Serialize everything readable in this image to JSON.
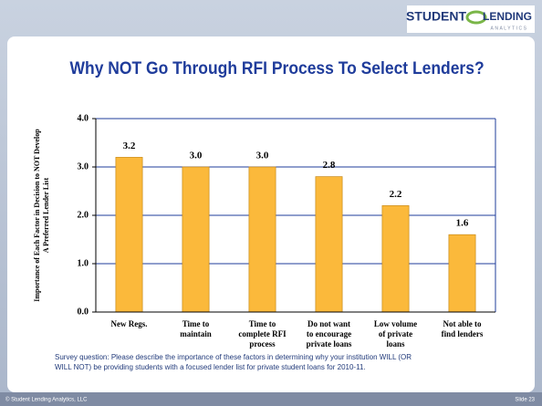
{
  "logo": {
    "left": "STUDENT",
    "right": "LENDING",
    "sub": "ANALYTICS"
  },
  "chart_data": {
    "type": "bar",
    "title": "Why NOT Go Through RFI Process To Select Lenders?",
    "y_label": [
      "Importance of Each Factor in Decision to NOT Develop",
      "A Preferred Lender List"
    ],
    "categories": [
      [
        "New Regs."
      ],
      [
        "Time to",
        "maintain"
      ],
      [
        "Time to",
        "complete RFI",
        "process"
      ],
      [
        "Do not want",
        "to encourage",
        "private loans"
      ],
      [
        "Low volume",
        "of private",
        "loans"
      ],
      [
        "Not able to",
        "find lenders"
      ]
    ],
    "values": [
      3.2,
      3.0,
      3.0,
      2.8,
      2.2,
      1.6
    ],
    "value_labels": [
      "3.2",
      "3.0",
      "3.0",
      "2.8",
      "2.2",
      "1.6"
    ],
    "color": "#fbb93b",
    "ylim": [
      0,
      4
    ],
    "yticks": [
      {
        "value": 0,
        "label": "0.0"
      },
      {
        "value": 1,
        "label": "1.0"
      },
      {
        "value": 2,
        "label": "2.0"
      },
      {
        "value": 3,
        "label": "3.0"
      },
      {
        "value": 4,
        "label": "4.0"
      }
    ],
    "grid": true
  },
  "survey_note": [
    "Survey question:  Please describe the importance of these factors in determining why your institution WILL (OR",
    "WILL NOT) be providing students with a focused lender list for private student loans for 2010-11."
  ],
  "footer": {
    "copyright": "© Student Lending Analytics, LLC",
    "slide": "Slide 23"
  }
}
